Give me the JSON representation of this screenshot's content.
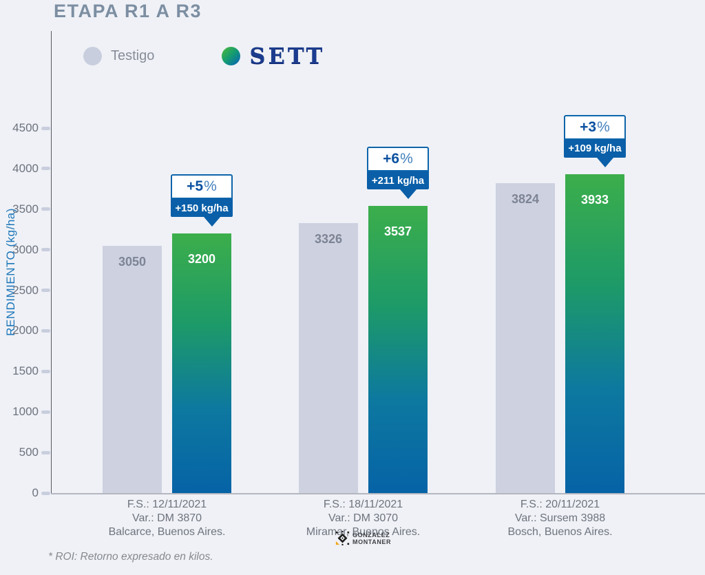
{
  "page": {
    "title": "ETAPA R1 A R3",
    "footnote": "* ROI: Retorno expresado en kilos.",
    "background_color": "#eff1f6"
  },
  "legend": {
    "testigo_label": "Testigo",
    "sett_label": "SETT"
  },
  "branding": {
    "logo_line1": "GONZALEZ",
    "logo_line2": "MONTANER"
  },
  "colors": {
    "accent_blue": "#0a5fa8",
    "bar_testigo": "#cdd1e0",
    "bar_sett_top": "#3cae4b",
    "bar_sett_bottom": "#0663a6",
    "axis_title_blue": "#1c76ba",
    "sett_logo_navy": "#1b3c8e",
    "title_color": "#7c8ea2"
  },
  "chart_data": {
    "type": "bar",
    "title": "ETAPA R1 A R3",
    "xlabel": "",
    "ylabel": "RENDIMIENTO (kg/ha)",
    "ylim": [
      0,
      4500
    ],
    "yticks": [
      0,
      500,
      1000,
      1500,
      2000,
      2500,
      3000,
      3500,
      4000,
      4500
    ],
    "grid": false,
    "legend_position": "top-left",
    "categories": [
      [
        "F.S.: 12/11/2021",
        "Var.: DM 3870",
        "Balcarce, Buenos Aires."
      ],
      [
        "F.S.: 18/11/2021",
        "Var.: DM 3070",
        "Miramar, Buenos Aires."
      ],
      [
        "F.S.: 20/11/2021",
        "Var.: Sursem 3988",
        "Bosch, Buenos Aires."
      ]
    ],
    "series": [
      {
        "name": "Testigo",
        "values": [
          3050,
          3326,
          3824
        ]
      },
      {
        "name": "SETT",
        "values": [
          3200,
          3537,
          3933
        ]
      }
    ],
    "annotations": [
      {
        "pct_value": "+5",
        "pct_symbol": "%",
        "kg_label": "+150 kg/ha"
      },
      {
        "pct_value": "+6",
        "pct_symbol": "%",
        "kg_label": "+211 kg/ha"
      },
      {
        "pct_value": "+3",
        "pct_symbol": "%",
        "kg_label": "+109 kg/ha"
      }
    ]
  }
}
